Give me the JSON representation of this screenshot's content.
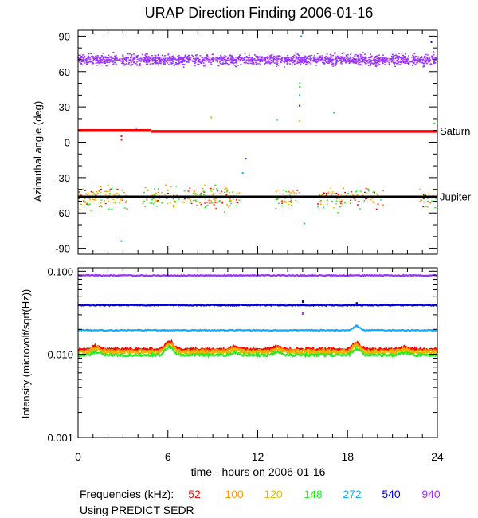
{
  "title": "URAP Direction Finding  2006-01-16",
  "chart_data": [
    {
      "type": "scatter",
      "panel": "azimuth",
      "ylabel": "Azimuthal angle (deg)",
      "ylim": [
        -95,
        95
      ],
      "yticks": [
        90,
        60,
        30,
        0,
        -30,
        -60,
        -90
      ],
      "xlim": [
        0,
        24
      ],
      "reference_lines": [
        {
          "label": "Saturn",
          "color": "#ff0000",
          "segments": [
            {
              "x": [
                0,
                4.9
              ],
              "y": 10
            },
            {
              "x": [
                4.9,
                24
              ],
              "y": 9.2
            }
          ]
        },
        {
          "label": "Jupiter",
          "color": "#000000",
          "segments": [
            {
              "x": [
                0,
                24
              ],
              "y": -46.5
            }
          ]
        }
      ],
      "series": [
        {
          "name": "940",
          "center": 70,
          "spread": 4,
          "coverage": [
            [
              0,
              24
            ]
          ]
        },
        {
          "name": "52",
          "center": -47,
          "spread": 6,
          "coverage": [
            [
              0,
              3.3
            ],
            [
              4.3,
              10.8
            ],
            [
              13.2,
              14.8
            ],
            [
              16,
              20.4
            ],
            [
              22.8,
              24
            ]
          ]
        },
        {
          "name": "100",
          "center": -47,
          "spread": 6,
          "coverage": [
            [
              0,
              3.3
            ],
            [
              4.3,
              10.8
            ],
            [
              13.2,
              14.8
            ],
            [
              16,
              20.4
            ],
            [
              22.8,
              24
            ]
          ]
        },
        {
          "name": "120",
          "center": -47,
          "spread": 6,
          "coverage": [
            [
              0,
              3.3
            ],
            [
              4.3,
              10.8
            ],
            [
              13.2,
              14.8
            ],
            [
              16,
              20.4
            ],
            [
              22.8,
              24
            ]
          ]
        },
        {
          "name": "148",
          "center": -48,
          "spread": 7,
          "coverage": [
            [
              0,
              3.3
            ],
            [
              4.3,
              10.8
            ],
            [
              13.2,
              14.8
            ],
            [
              16,
              20.4
            ],
            [
              22.8,
              24
            ]
          ]
        }
      ],
      "outliers": [
        {
          "x": 2.9,
          "y": 5,
          "series": "52"
        },
        {
          "x": 2.9,
          "y": 2,
          "series": "52"
        },
        {
          "x": 3.9,
          "y": 12,
          "series": "272"
        },
        {
          "x": 2.9,
          "y": -84,
          "series": "272"
        },
        {
          "x": 8.9,
          "y": 21,
          "series": "120"
        },
        {
          "x": 11.2,
          "y": -14,
          "series": "540"
        },
        {
          "x": 11.0,
          "y": -26,
          "series": "272"
        },
        {
          "x": 13.3,
          "y": 19,
          "series": "272"
        },
        {
          "x": 14.8,
          "y": 50,
          "series": "148"
        },
        {
          "x": 14.8,
          "y": 47,
          "series": "148"
        },
        {
          "x": 14.8,
          "y": 40,
          "series": "272"
        },
        {
          "x": 14.8,
          "y": 31,
          "series": "540"
        },
        {
          "x": 14.8,
          "y": 18,
          "series": "120"
        },
        {
          "x": 14.9,
          "y": 90,
          "series": "272"
        },
        {
          "x": 15.1,
          "y": -69,
          "series": "272"
        },
        {
          "x": 17.1,
          "y": 25,
          "series": "272"
        },
        {
          "x": 23.6,
          "y": 85,
          "series": "540"
        },
        {
          "x": 23.8,
          "y": 16,
          "series": "148"
        }
      ]
    },
    {
      "type": "line",
      "panel": "intensity",
      "ylabel": "Intensity (microvolt/sqrt(Hz))",
      "yscale": "log",
      "ylim": [
        0.001,
        0.11
      ],
      "yticks": [
        "0.100",
        "0.010",
        "0.001"
      ],
      "xlim": [
        0,
        24
      ],
      "series": [
        {
          "name": "940",
          "level": 0.089
        },
        {
          "name": "540",
          "level": 0.039
        },
        {
          "name": "272",
          "level": 0.0195
        },
        {
          "name": "52",
          "level": 0.0115
        },
        {
          "name": "100",
          "level": 0.011
        },
        {
          "name": "120",
          "level": 0.0105
        },
        {
          "name": "148",
          "level": 0.0098
        }
      ],
      "bumps": [
        {
          "x": 1.2,
          "factor": 1.1
        },
        {
          "x": 6.1,
          "factor": 1.25
        },
        {
          "x": 10.5,
          "factor": 1.08
        },
        {
          "x": 13.3,
          "factor": 1.08
        },
        {
          "x": 18.6,
          "factor": 1.2
        },
        {
          "x": 21.8,
          "factor": 1.06
        }
      ],
      "spikes": [
        {
          "x": 15.0,
          "value": 0.043,
          "series": "540"
        },
        {
          "x": 18.6,
          "value": 0.041,
          "series": "540"
        },
        {
          "x": 15.0,
          "value": 0.031,
          "series": "940"
        },
        {
          "x": 18.6,
          "value": 0.022,
          "series": "272"
        }
      ]
    }
  ],
  "x_axis": {
    "label": "time - hours on 2006-01-16",
    "ticks": [
      "0",
      "6",
      "12",
      "18",
      "24"
    ]
  },
  "legend": {
    "label": "Frequencies (kHz):",
    "items": [
      {
        "name": "52",
        "color": "#ff0000"
      },
      {
        "name": "100",
        "color": "#ff9900"
      },
      {
        "name": "120",
        "color": "#e6b800"
      },
      {
        "name": "148",
        "color": "#22ee22"
      },
      {
        "name": "272",
        "color": "#11aaff"
      },
      {
        "name": "540",
        "color": "#0000dd"
      },
      {
        "name": "940",
        "color": "#9933ff"
      }
    ]
  },
  "footnote": "Using PREDICT SEDR"
}
